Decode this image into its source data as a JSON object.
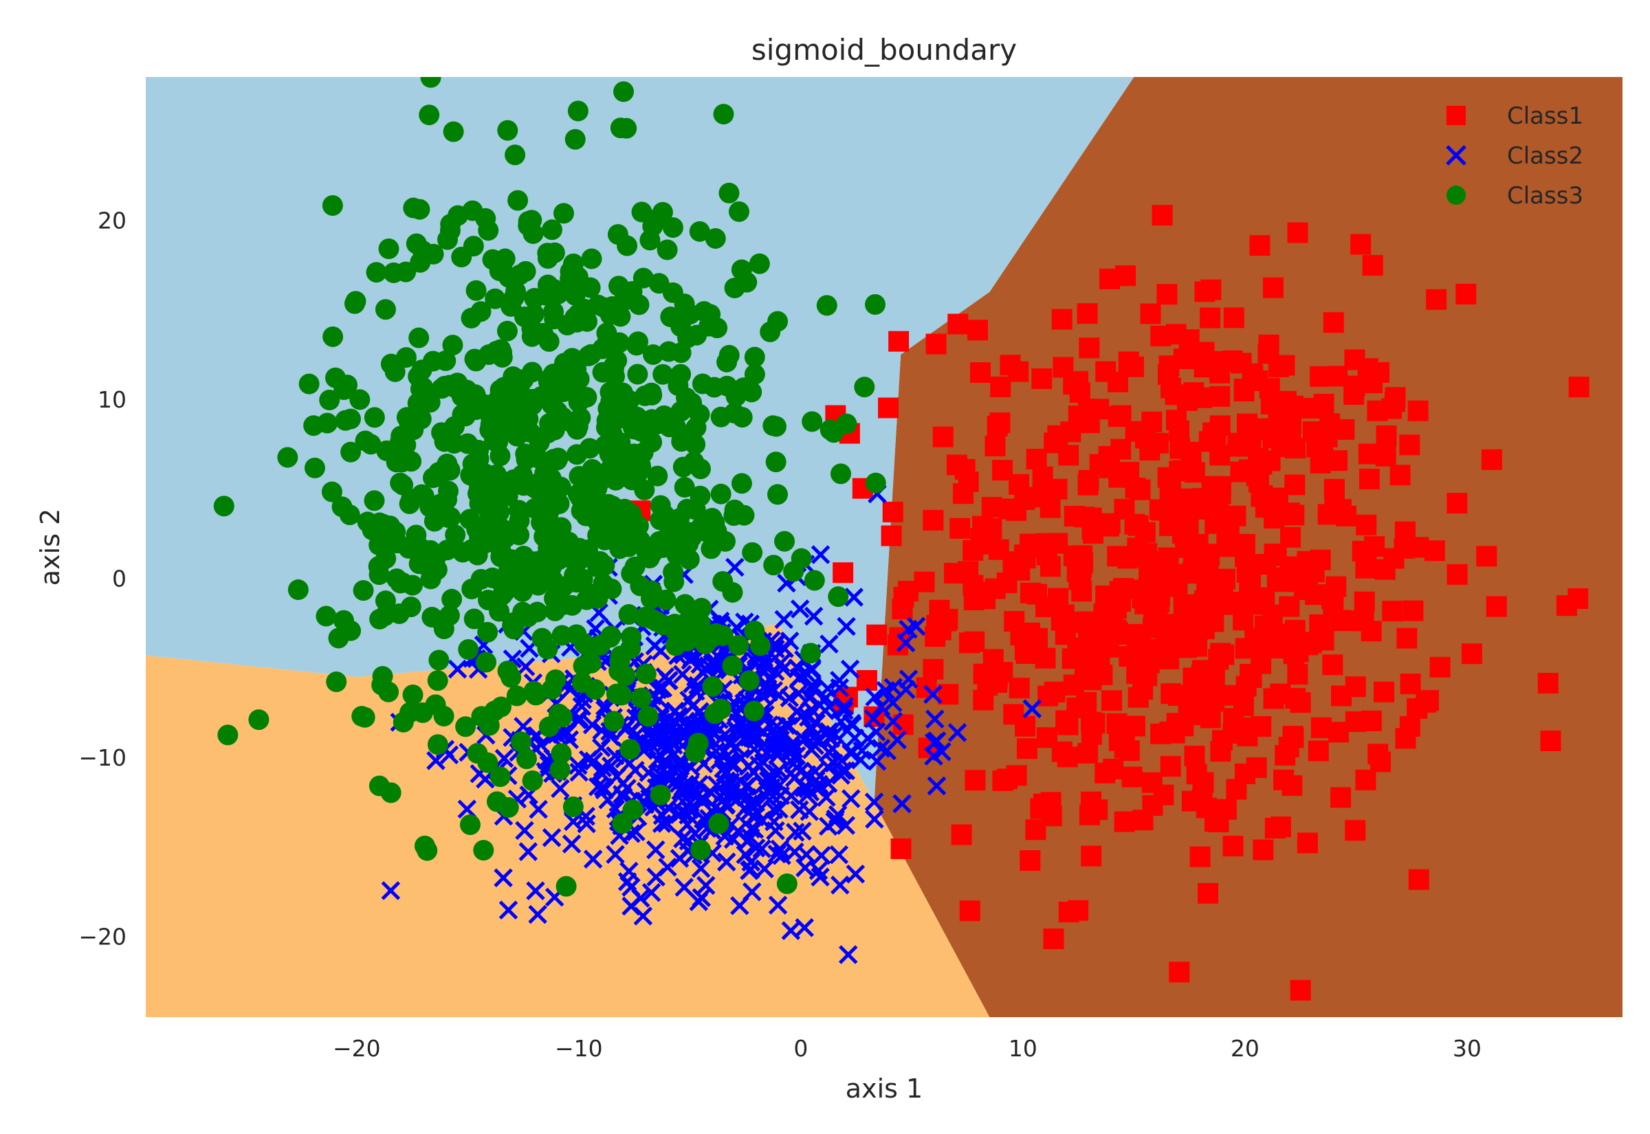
{
  "chart_data": {
    "type": "scatter",
    "title": "sigmoid_boundary",
    "xlabel": "axis 1",
    "ylabel": "axis 2",
    "xlim": [
      -29.5,
      37
    ],
    "ylim": [
      -24.5,
      28
    ],
    "xticks": [
      -20,
      -10,
      0,
      10,
      20,
      30
    ],
    "xtick_labels": [
      "−20",
      "−10",
      "0",
      "10",
      "20",
      "30"
    ],
    "yticks": [
      -20,
      -10,
      0,
      10,
      20
    ],
    "ytick_labels": [
      "−20",
      "−10",
      "0",
      "10",
      "20"
    ],
    "grid": false,
    "legend_position": "top-right",
    "decision_regions": [
      {
        "class": "Class1",
        "color": "#b15928",
        "polygon": [
          [
            8.5,
            -24.5
          ],
          [
            3.3,
            -12.5
          ],
          [
            4.5,
            12.5
          ],
          [
            8.5,
            16
          ],
          [
            15,
            28
          ],
          [
            37,
            28
          ],
          [
            37,
            -24.5
          ]
        ]
      },
      {
        "class": "Class2",
        "color": "#fdbf6f",
        "polygon": [
          [
            -29.5,
            -24.5
          ],
          [
            8.5,
            -24.5
          ],
          [
            3.3,
            -12.5
          ],
          [
            -1,
            -2.5
          ],
          [
            -6,
            -4
          ],
          [
            -20,
            -5.5
          ],
          [
            -29.5,
            -4.3
          ]
        ]
      },
      {
        "class": "Class3",
        "color": "#a6cee3",
        "polygon": [
          [
            -29.5,
            -4.3
          ],
          [
            -20,
            -5.5
          ],
          [
            -6,
            -4
          ],
          [
            -1,
            -2.5
          ],
          [
            3.3,
            -12.5
          ],
          [
            4.5,
            12.5
          ],
          [
            8.5,
            16
          ],
          [
            15,
            28
          ],
          [
            -29.5,
            28
          ]
        ]
      }
    ],
    "series": [
      {
        "name": "Class1",
        "marker": "square",
        "color": "#ff0000",
        "center": [
          17,
          0
        ],
        "spread": [
          6,
          8
        ],
        "n": 650
      },
      {
        "name": "Class2",
        "marker": "x",
        "color": "#0000ff",
        "center": [
          -4,
          -9
        ],
        "spread": [
          4.5,
          4
        ],
        "n": 700
      },
      {
        "name": "Class3",
        "marker": "circle",
        "color": "#008000",
        "center": [
          -11,
          6
        ],
        "spread": [
          5,
          8
        ],
        "n": 800
      }
    ],
    "legend": [
      "Class1",
      "Class2",
      "Class3"
    ]
  }
}
